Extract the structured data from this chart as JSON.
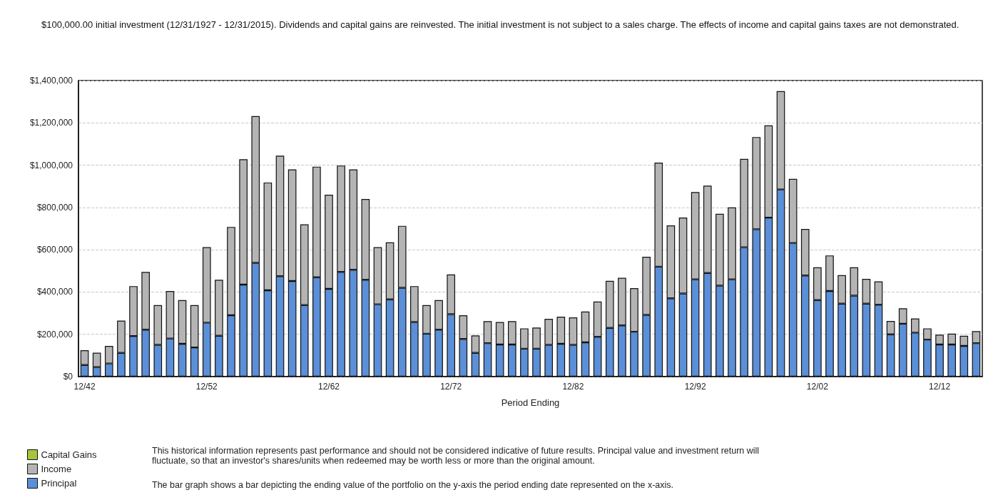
{
  "chart_data": {
    "type": "bar",
    "stacked": true,
    "title": "$100,000.00 initial investment (12/31/1927 - 12/31/2015). Dividends and capital gains are reinvested. The initial investment is not subject to a sales charge. The effects of income and capital gains taxes are not demonstrated.",
    "xlabel": "Period Ending",
    "categories": [
      "12/42",
      null,
      null,
      null,
      null,
      null,
      null,
      null,
      null,
      null,
      "12/52",
      null,
      null,
      null,
      null,
      null,
      null,
      null,
      null,
      null,
      "12/62",
      null,
      null,
      null,
      null,
      null,
      null,
      null,
      null,
      null,
      "12/72",
      null,
      null,
      null,
      null,
      null,
      null,
      null,
      null,
      null,
      "12/82",
      null,
      null,
      null,
      null,
      null,
      null,
      null,
      null,
      null,
      "12/92",
      null,
      null,
      null,
      null,
      null,
      null,
      null,
      null,
      null,
      "12/02",
      null,
      null,
      null,
      null,
      null,
      null,
      null,
      null,
      null,
      "12/12",
      null,
      null,
      null
    ],
    "series": [
      {
        "name": "Principal",
        "color": "#5b8fd8",
        "values": [
          55000,
          45000,
          62000,
          112000,
          192000,
          222000,
          150000,
          180000,
          155000,
          138000,
          255000,
          193000,
          290000,
          435000,
          538000,
          408000,
          475000,
          452000,
          338000,
          470000,
          415000,
          495000,
          505000,
          458000,
          342000,
          365000,
          420000,
          258000,
          203000,
          222000,
          295000,
          178000,
          112000,
          158000,
          152000,
          152000,
          132000,
          132000,
          150000,
          155000,
          150000,
          162000,
          188000,
          230000,
          242000,
          212000,
          292000,
          520000,
          370000,
          393000,
          460000,
          490000,
          430000,
          460000,
          612000,
          697000,
          752000,
          885000,
          632000,
          478000,
          362000,
          405000,
          345000,
          383000,
          345000,
          340000,
          200000,
          250000,
          208000,
          175000,
          152000,
          152000,
          145000,
          158000
        ]
      },
      {
        "name": "Income",
        "color": "#b4b4b4",
        "values": [
          70000,
          68000,
          83000,
          153000,
          236000,
          273000,
          188000,
          225000,
          207000,
          200000,
          357000,
          265000,
          418000,
          593000,
          694000,
          510000,
          570000,
          528000,
          382000,
          523000,
          445000,
          503000,
          475000,
          382000,
          270000,
          270000,
          293000,
          170000,
          135000,
          140000,
          188000,
          112000,
          83000,
          104000,
          106000,
          110000,
          96000,
          100000,
          123000,
          128000,
          130000,
          146000,
          167000,
          223000,
          225000,
          206000,
          275000,
          492000,
          345000,
          359000,
          413000,
          413000,
          340000,
          340000,
          418000,
          436000,
          436000,
          465000,
          303000,
          220000,
          155000,
          168000,
          135000,
          134000,
          117000,
          110000,
          63000,
          73000,
          67000,
          53000,
          46000,
          51000,
          48000,
          57000
        ]
      },
      {
        "name": "Capital Gains",
        "color": "#a8c43c",
        "values": [
          0,
          0,
          0,
          0,
          0,
          0,
          0,
          0,
          0,
          0,
          0,
          0,
          0,
          0,
          0,
          0,
          0,
          0,
          0,
          0,
          0,
          0,
          0,
          0,
          0,
          0,
          0,
          0,
          0,
          0,
          0,
          0,
          0,
          0,
          0,
          0,
          0,
          0,
          0,
          0,
          0,
          0,
          0,
          0,
          0,
          0,
          0,
          0,
          0,
          0,
          0,
          0,
          0,
          0,
          0,
          0,
          0,
          0,
          0,
          0,
          0,
          0,
          0,
          0,
          0,
          0,
          0,
          0,
          0,
          0,
          0,
          0,
          0,
          0
        ]
      }
    ],
    "ylim": [
      0,
      1400000
    ],
    "yticks": [
      {
        "value": 0,
        "label": "$0"
      },
      {
        "value": 200000,
        "label": "$200,000"
      },
      {
        "value": 400000,
        "label": "$400,000"
      },
      {
        "value": 600000,
        "label": "$600,000"
      },
      {
        "value": 800000,
        "label": "$800,000"
      },
      {
        "value": 1000000,
        "label": "$1,000,000"
      },
      {
        "value": 1200000,
        "label": "$1,200,000"
      },
      {
        "value": 1400000,
        "label": "$1,400,000"
      }
    ],
    "grid": "y",
    "legend": "bottom left",
    "annotations": [
      "This historical information represents past performance and should not be considered indicative of future results. Principal value and investment return will fluctuate, so that an investor's shares/units when redeemed may be worth less or more than the original amount.",
      "The bar graph shows a bar depicting the ending value of the portfolio on the y-axis the period ending date represented on the x-axis."
    ]
  }
}
